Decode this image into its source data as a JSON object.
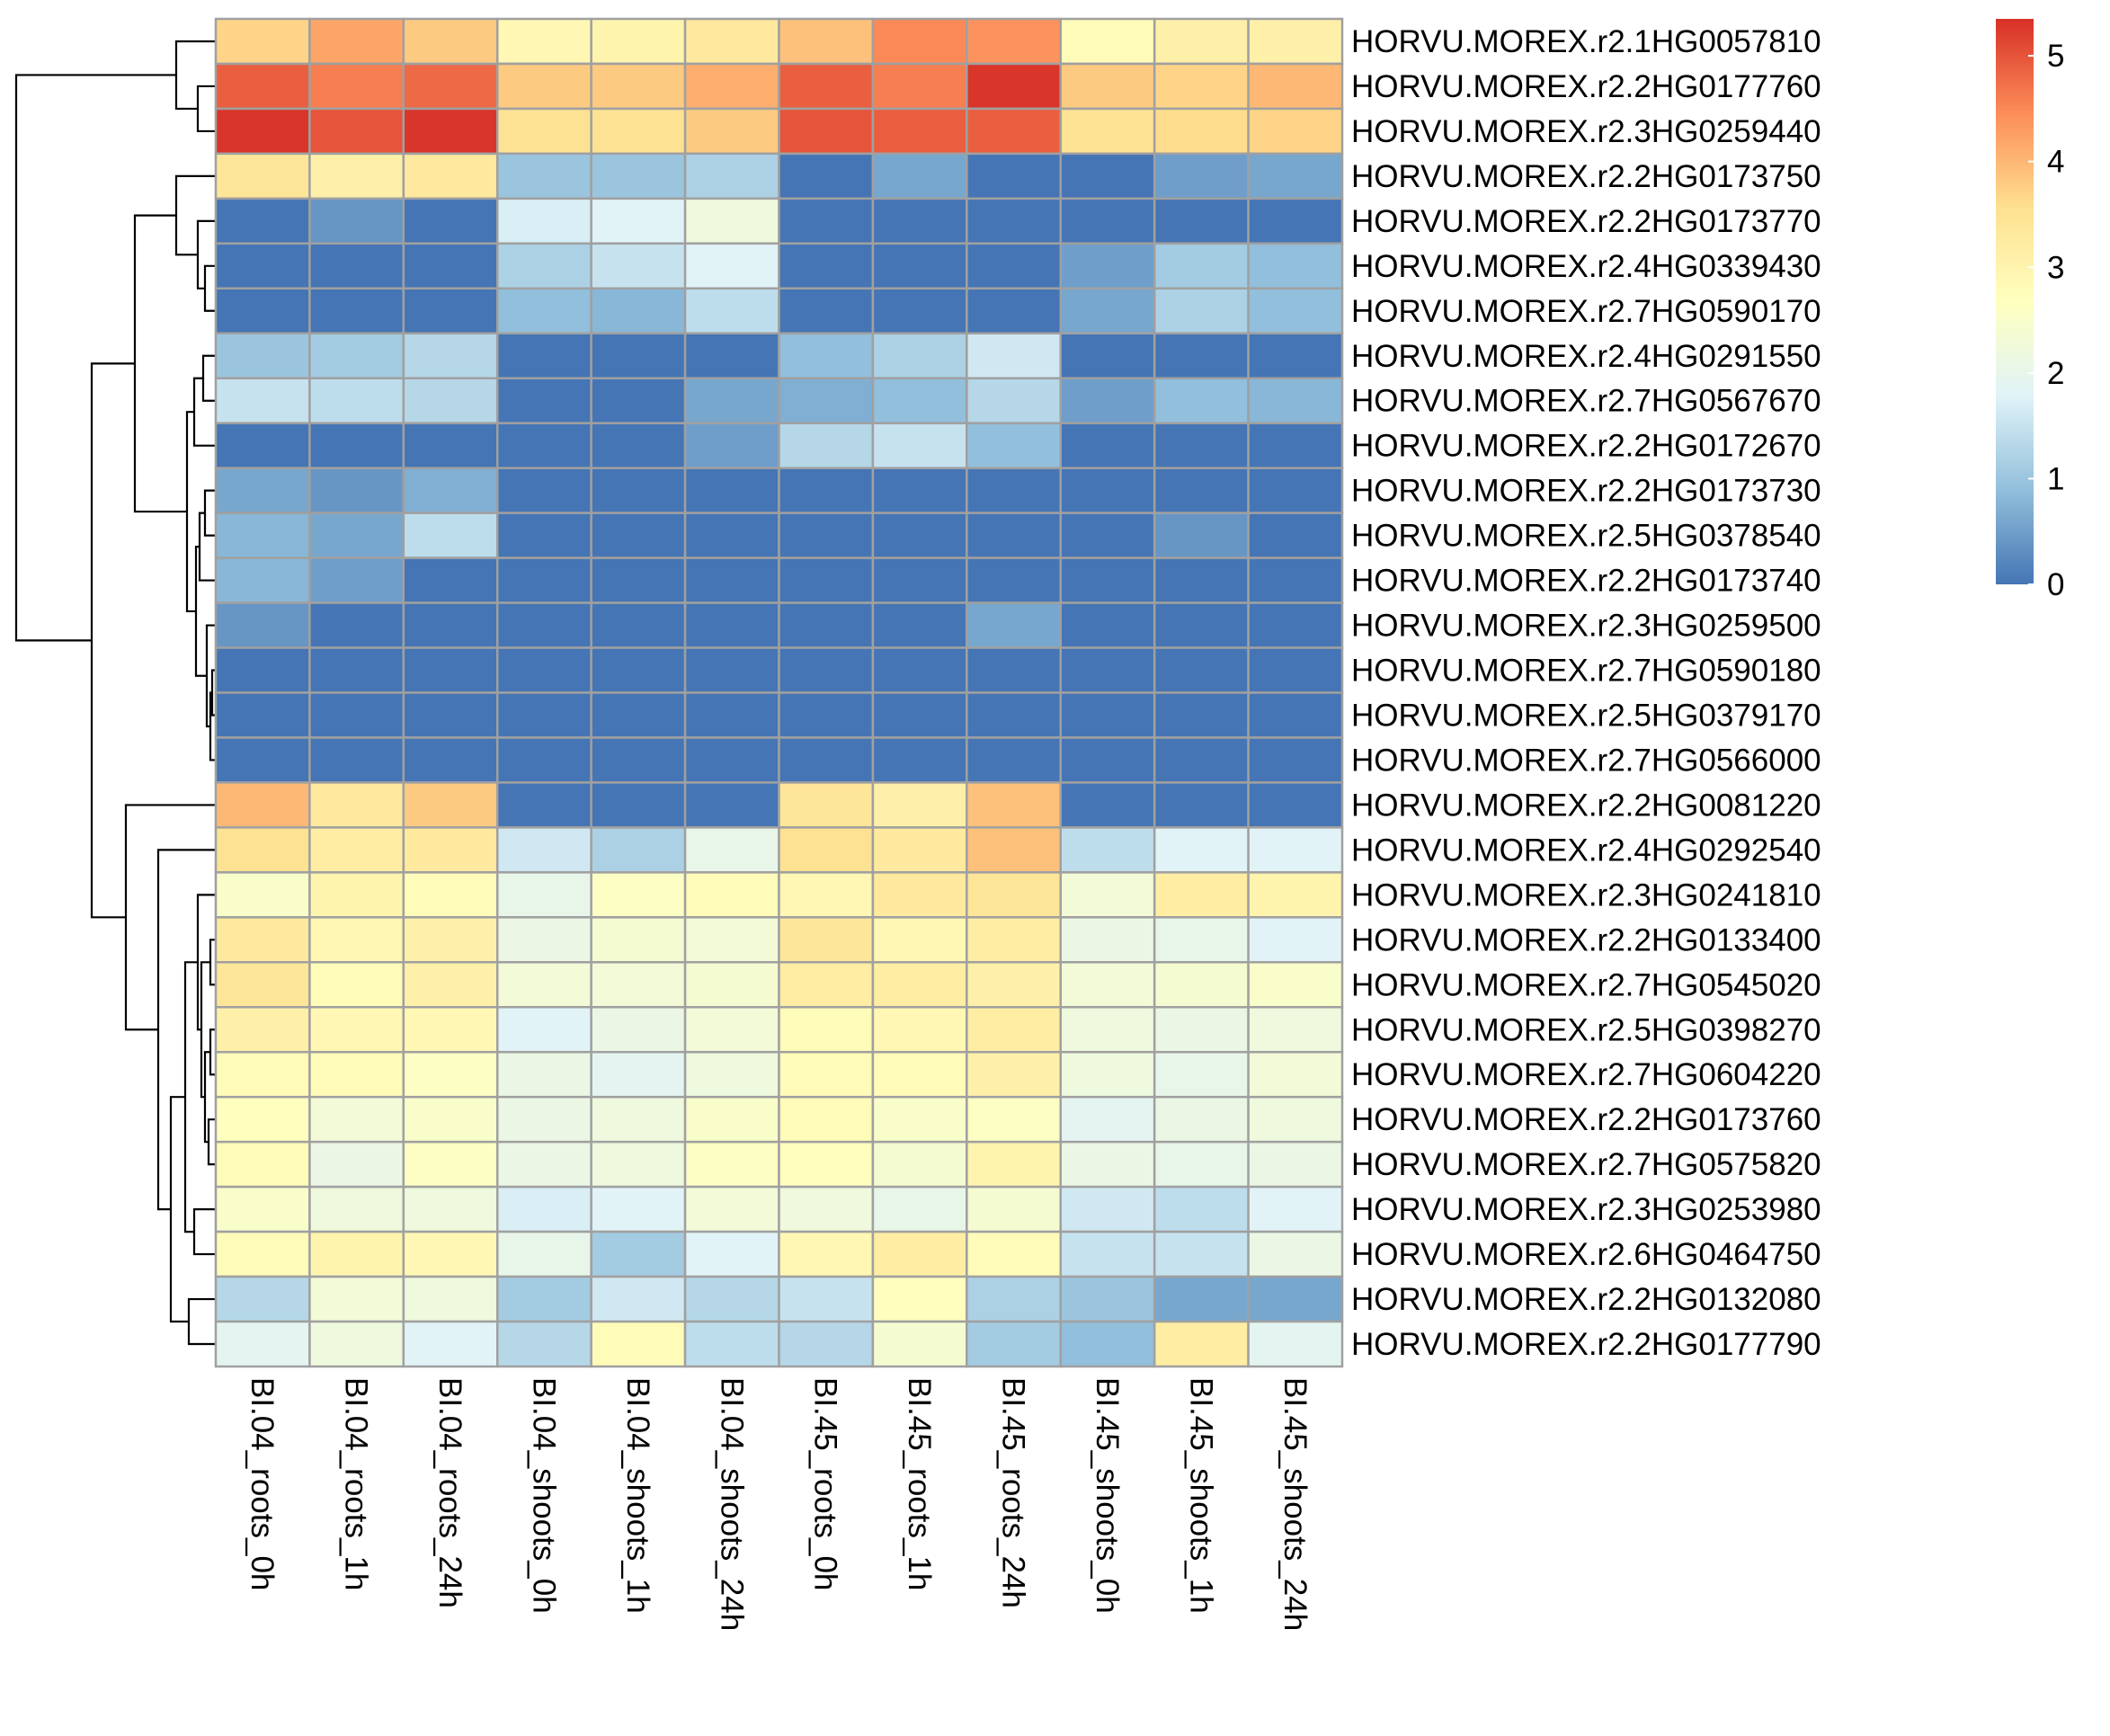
{
  "chart_data": {
    "type": "heatmap",
    "title": "",
    "xlabel": "",
    "ylabel": "",
    "columns": [
      "BI.04_roots_0h",
      "BI.04_roots_1h",
      "BI.04_roots_24h",
      "BI.04_shoots_0h",
      "BI.04_shoots_1h",
      "BI.04_shoots_24h",
      "BI.45_roots_0h",
      "BI.45_roots_1h",
      "BI.45_roots_24h",
      "BI.45_shoots_0h",
      "BI.45_shoots_1h",
      "BI.45_shoots_24h"
    ],
    "rows": [
      "HORVU.MOREX.r2.1HG0057810",
      "HORVU.MOREX.r2.2HG0177760",
      "HORVU.MOREX.r2.3HG0259440",
      "HORVU.MOREX.r2.2HG0173750",
      "HORVU.MOREX.r2.2HG0173770",
      "HORVU.MOREX.r2.4HG0339430",
      "HORVU.MOREX.r2.7HG0590170",
      "HORVU.MOREX.r2.4HG0291550",
      "HORVU.MOREX.r2.7HG0567670",
      "HORVU.MOREX.r2.2HG0172670",
      "HORVU.MOREX.r2.2HG0173730",
      "HORVU.MOREX.r2.5HG0378540",
      "HORVU.MOREX.r2.2HG0173740",
      "HORVU.MOREX.r2.3HG0259500",
      "HORVU.MOREX.r2.7HG0590180",
      "HORVU.MOREX.r2.5HG0379170",
      "HORVU.MOREX.r2.7HG0566000",
      "HORVU.MOREX.r2.2HG0081220",
      "HORVU.MOREX.r2.4HG0292540",
      "HORVU.MOREX.r2.3HG0241810",
      "HORVU.MOREX.r2.2HG0133400",
      "HORVU.MOREX.r2.7HG0545020",
      "HORVU.MOREX.r2.5HG0398270",
      "HORVU.MOREX.r2.7HG0604220",
      "HORVU.MOREX.r2.2HG0173760",
      "HORVU.MOREX.r2.7HG0575820",
      "HORVU.MOREX.r2.3HG0253980",
      "HORVU.MOREX.r2.6HG0464750",
      "HORVU.MOREX.r2.2HG0132080",
      "HORVU.MOREX.r2.2HG0177790"
    ],
    "values": [
      [
        3.7,
        4.2,
        3.8,
        2.9,
        3.0,
        3.3,
        3.9,
        4.5,
        4.4,
        2.8,
        3.1,
        3.1
      ],
      [
        4.9,
        4.6,
        4.8,
        3.8,
        3.8,
        4.1,
        4.9,
        4.6,
        5.3,
        3.8,
        3.7,
        4.0
      ],
      [
        5.3,
        5.0,
        5.3,
        3.5,
        3.5,
        3.8,
        5.0,
        4.9,
        4.9,
        3.5,
        3.6,
        3.7
      ],
      [
        3.4,
        3.1,
        3.3,
        1.0,
        1.0,
        1.2,
        0,
        0.6,
        0,
        0,
        0.5,
        0.6
      ],
      [
        0,
        0.4,
        0,
        1.7,
        1.8,
        2.2,
        0,
        0,
        0,
        0,
        0,
        0
      ],
      [
        0,
        0,
        0,
        1.2,
        1.5,
        1.8,
        0,
        0,
        0,
        0.5,
        1.1,
        0.9
      ],
      [
        0,
        0,
        0,
        0.9,
        0.8,
        1.4,
        0,
        0,
        0,
        0.6,
        1.2,
        0.9
      ],
      [
        1.0,
        1.1,
        1.3,
        0,
        0,
        0,
        0.9,
        1.2,
        1.6,
        0,
        0,
        0
      ],
      [
        1.5,
        1.4,
        1.3,
        0,
        0,
        0.6,
        0.7,
        0.9,
        1.3,
        0.5,
        0.9,
        0.8
      ],
      [
        0,
        0,
        0,
        0,
        0,
        0.5,
        1.3,
        1.5,
        0.9,
        0,
        0,
        0
      ],
      [
        0.6,
        0.4,
        0.7,
        0,
        0,
        0,
        0,
        0,
        0,
        0,
        0,
        0
      ],
      [
        0.8,
        0.6,
        1.4,
        0,
        0,
        0,
        0,
        0,
        0,
        0,
        0.4,
        0
      ],
      [
        0.8,
        0.5,
        0,
        0,
        0,
        0,
        0,
        0,
        0,
        0,
        0,
        0
      ],
      [
        0.4,
        0,
        0,
        0,
        0,
        0,
        0,
        0,
        0.6,
        0,
        0,
        0
      ],
      [
        0,
        0,
        0,
        0,
        0,
        0,
        0,
        0,
        0,
        0,
        0,
        0
      ],
      [
        0,
        0,
        0,
        0,
        0,
        0,
        0,
        0,
        0,
        0,
        0,
        0
      ],
      [
        0,
        0,
        0,
        0,
        0,
        0,
        0,
        0,
        0,
        0,
        0,
        0
      ],
      [
        4.0,
        3.3,
        3.8,
        0,
        0,
        0,
        3.4,
        3.1,
        3.9,
        0,
        0,
        0
      ],
      [
        3.5,
        3.2,
        3.3,
        1.6,
        1.2,
        2.0,
        3.5,
        3.3,
        3.9,
        1.4,
        1.8,
        1.8
      ],
      [
        2.5,
        3.0,
        2.8,
        2.0,
        2.6,
        2.8,
        2.9,
        3.3,
        3.4,
        2.3,
        3.2,
        3.0
      ],
      [
        3.3,
        2.9,
        3.1,
        2.1,
        2.4,
        2.3,
        3.4,
        2.9,
        3.2,
        2.1,
        2.0,
        1.8
      ],
      [
        3.4,
        2.8,
        3.1,
        2.3,
        2.3,
        2.4,
        3.2,
        3.2,
        3.1,
        2.3,
        2.4,
        2.5
      ],
      [
        3.1,
        2.9,
        2.9,
        1.8,
        2.1,
        2.3,
        2.8,
        2.9,
        3.2,
        2.2,
        2.1,
        2.2
      ],
      [
        2.8,
        2.8,
        2.6,
        2.1,
        1.9,
        2.2,
        2.8,
        2.8,
        3.1,
        2.2,
        2.0,
        2.3
      ],
      [
        2.7,
        2.3,
        2.5,
        2.1,
        2.2,
        2.5,
        2.8,
        2.5,
        2.6,
        1.9,
        2.1,
        2.2
      ],
      [
        2.8,
        2.1,
        2.6,
        2.1,
        2.2,
        2.6,
        2.7,
        2.4,
        3.0,
        2.1,
        2.0,
        2.1
      ],
      [
        2.5,
        2.2,
        2.2,
        1.7,
        1.8,
        2.3,
        2.2,
        2.0,
        2.4,
        1.6,
        1.4,
        1.8
      ],
      [
        2.8,
        3.0,
        2.9,
        2.0,
        1.1,
        1.8,
        2.9,
        3.2,
        2.8,
        1.5,
        1.5,
        2.1
      ],
      [
        1.3,
        2.3,
        2.2,
        1.1,
        1.6,
        1.3,
        1.5,
        2.7,
        1.2,
        1.0,
        0.6,
        0.6
      ],
      [
        1.9,
        2.2,
        1.8,
        1.3,
        2.8,
        1.4,
        1.3,
        2.4,
        1.1,
        0.9,
        3.2,
        1.9
      ]
    ],
    "color_scale": {
      "min": 0,
      "max": 5.35,
      "ticks": [
        "0",
        "1",
        "2",
        "3",
        "4",
        "5"
      ],
      "colors": [
        "#4575b4",
        "#91bfdb",
        "#e0f3f8",
        "#ffffbf",
        "#fee090",
        "#fc8d59",
        "#d73027"
      ]
    },
    "cell_border_color": "#a0a0a0",
    "grid": false,
    "legend_position": "top-right",
    "row_dendrogram": true
  }
}
